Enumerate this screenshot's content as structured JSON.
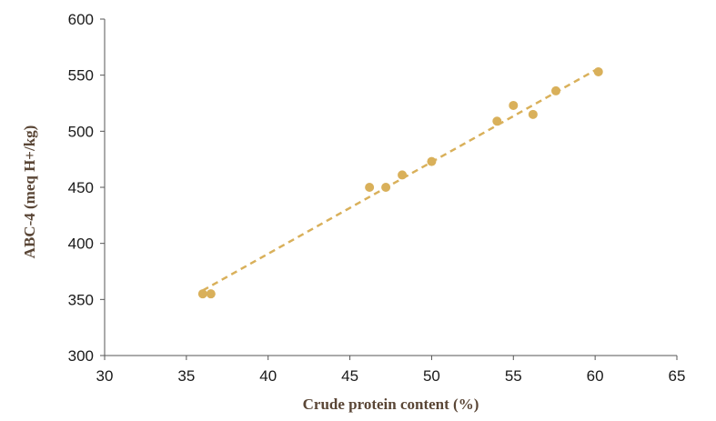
{
  "chart_data": {
    "type": "scatter",
    "xlabel": "Crude protein content (%)",
    "ylabel": "ABC-4 (meq H+/kg)",
    "xlim": [
      30,
      65
    ],
    "ylim": [
      300,
      600
    ],
    "xticks": [
      30,
      35,
      40,
      45,
      50,
      55,
      60,
      65
    ],
    "yticks": [
      300,
      350,
      400,
      450,
      500,
      550,
      600
    ],
    "grid": false,
    "legend": "none",
    "marker_color": "#d9b05a",
    "series": [
      {
        "x": [
          36.0,
          36.5,
          46.2,
          47.2,
          48.2,
          50.0,
          54.0,
          55.0,
          56.2,
          57.6,
          60.2
        ],
        "y": [
          355,
          355,
          450,
          450,
          461,
          473,
          509,
          523,
          515,
          536,
          553
        ]
      }
    ],
    "trendline": {
      "style": "dashed",
      "color": "#d9b05a",
      "x": [
        36.0,
        60.2
      ],
      "y": [
        358,
        556
      ]
    }
  }
}
